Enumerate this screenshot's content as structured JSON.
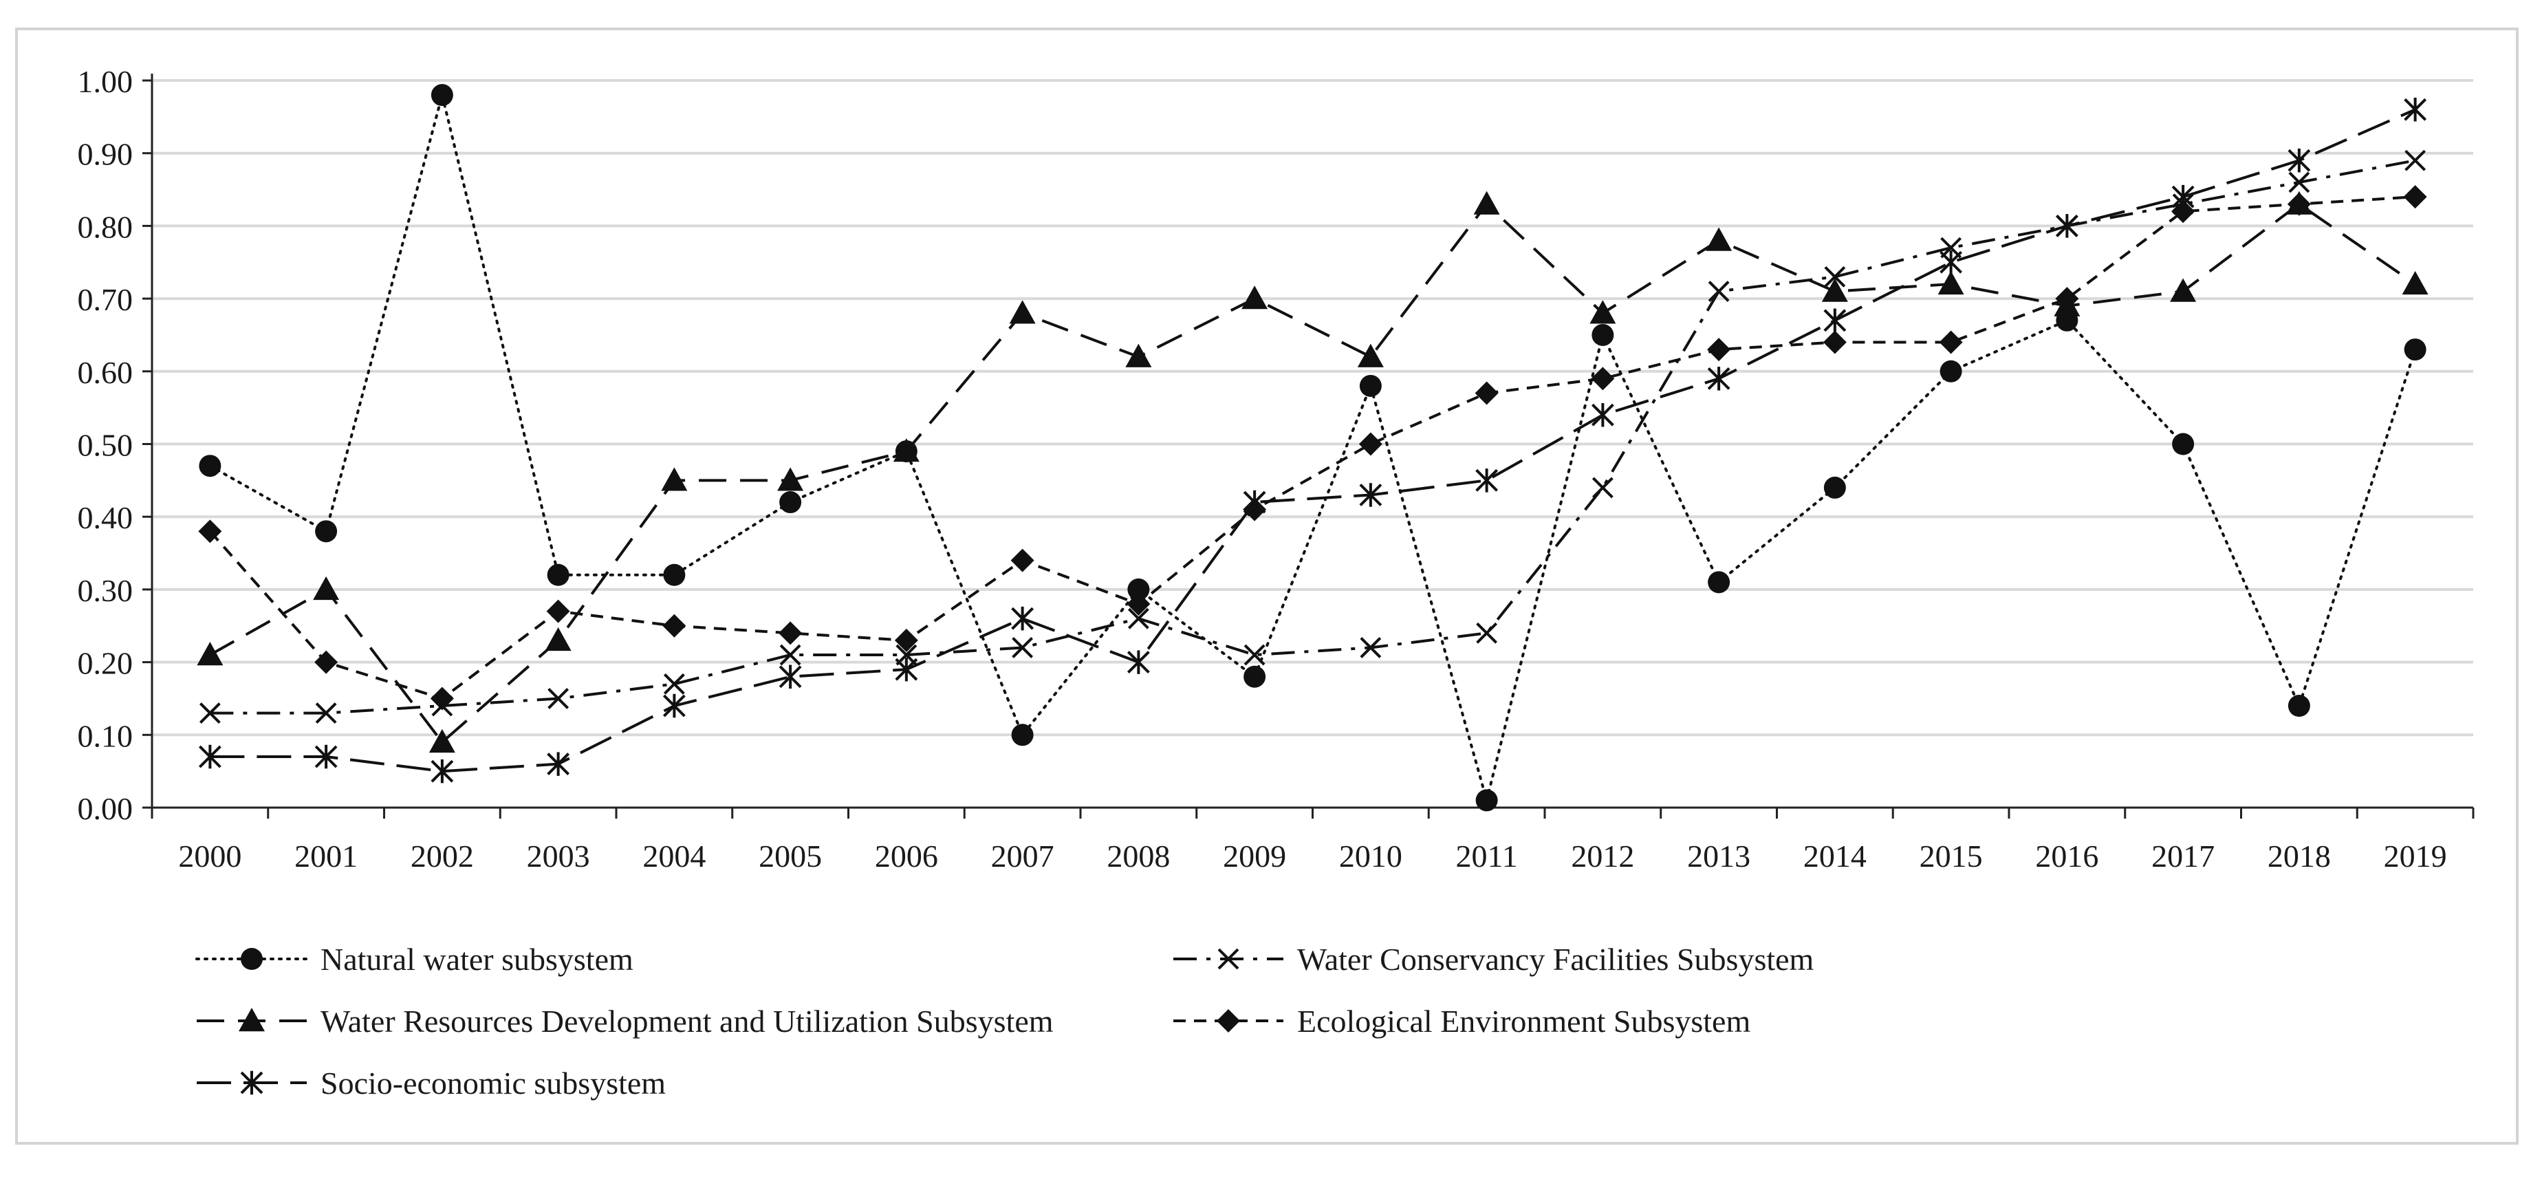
{
  "chart_data": {
    "type": "line",
    "title": "",
    "xlabel": "",
    "ylabel": "",
    "categories": [
      "2000",
      "2001",
      "2002",
      "2003",
      "2004",
      "2005",
      "2006",
      "2007",
      "2008",
      "2009",
      "2010",
      "2011",
      "2012",
      "2013",
      "2014",
      "2015",
      "2016",
      "2017",
      "2018",
      "2019"
    ],
    "ylim": [
      0,
      1.0
    ],
    "yticks": [
      "0.00",
      "0.10",
      "0.20",
      "0.30",
      "0.40",
      "0.50",
      "0.60",
      "0.70",
      "0.80",
      "0.90",
      "1.00"
    ],
    "grid": true,
    "legend_position": "bottom",
    "series": [
      {
        "name": "Natural water subsystem",
        "marker": "circle",
        "dash": "dotted",
        "values": [
          0.47,
          0.38,
          0.98,
          0.32,
          0.32,
          0.42,
          0.49,
          0.1,
          0.3,
          0.18,
          0.58,
          0.01,
          0.65,
          0.31,
          0.44,
          0.6,
          0.67,
          0.5,
          0.14,
          0.63
        ]
      },
      {
        "name": "Water Conservancy Facilities Subsystem",
        "marker": "x",
        "dash": "dashdot",
        "values": [
          0.13,
          0.13,
          0.14,
          0.15,
          0.17,
          0.21,
          0.21,
          0.22,
          0.26,
          0.21,
          0.22,
          0.24,
          0.44,
          0.71,
          0.73,
          0.77,
          0.8,
          0.83,
          0.86,
          0.89
        ]
      },
      {
        "name": "Water Resources Development and Utilization Subsystem",
        "marker": "triangle",
        "dash": "longdash",
        "values": [
          0.21,
          0.3,
          0.09,
          0.23,
          0.45,
          0.45,
          0.49,
          0.68,
          0.62,
          0.7,
          0.62,
          0.83,
          0.68,
          0.78,
          0.71,
          0.72,
          0.69,
          0.71,
          0.83,
          0.72
        ]
      },
      {
        "name": "Ecological Environment Subsystem",
        "marker": "diamond",
        "dash": "shortdash",
        "values": [
          0.38,
          0.2,
          0.15,
          0.27,
          0.25,
          0.24,
          0.23,
          0.34,
          0.28,
          0.41,
          0.5,
          0.57,
          0.59,
          0.63,
          0.64,
          0.64,
          0.7,
          0.82,
          0.83,
          0.84
        ]
      },
      {
        "name": "Socio-economic subsystem",
        "marker": "star",
        "dash": "dashed",
        "values": [
          0.07,
          0.07,
          0.05,
          0.06,
          0.14,
          0.18,
          0.19,
          0.26,
          0.2,
          0.42,
          0.43,
          0.45,
          0.54,
          0.59,
          0.67,
          0.75,
          0.8,
          0.84,
          0.89,
          0.96
        ]
      }
    ]
  }
}
